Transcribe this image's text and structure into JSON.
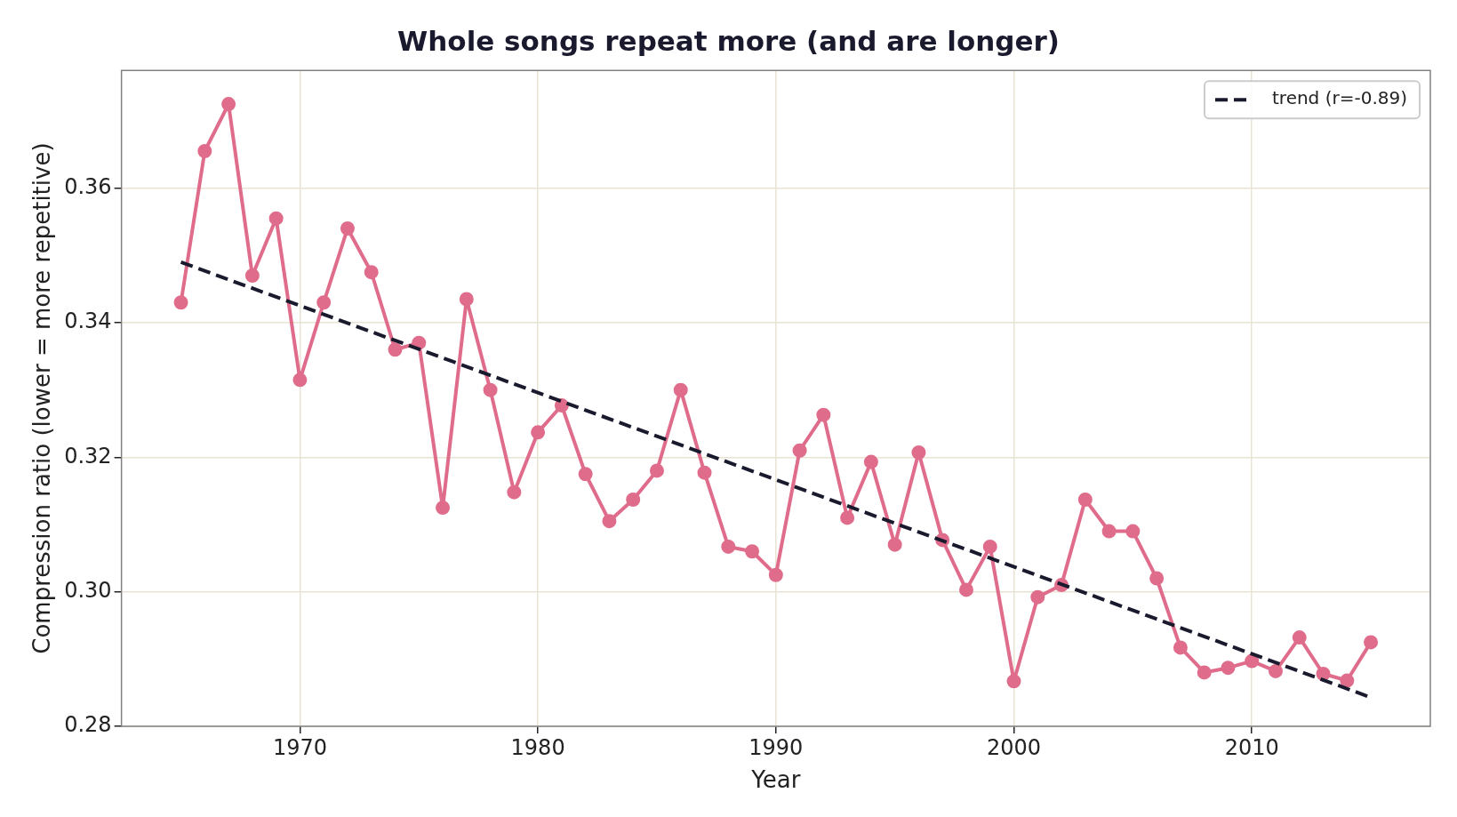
{
  "chart_data": {
    "type": "line",
    "title": "Whole songs repeat more (and are longer)",
    "xlabel": "Year",
    "ylabel": "Compression ratio (lower = more repetitive)",
    "x": [
      1965,
      1966,
      1967,
      1968,
      1969,
      1970,
      1971,
      1972,
      1973,
      1974,
      1975,
      1976,
      1977,
      1978,
      1979,
      1980,
      1981,
      1982,
      1983,
      1984,
      1985,
      1986,
      1987,
      1988,
      1989,
      1990,
      1991,
      1992,
      1993,
      1994,
      1995,
      1996,
      1997,
      1998,
      1999,
      2000,
      2001,
      2002,
      2003,
      2004,
      2005,
      2006,
      2007,
      2008,
      2009,
      2010,
      2011,
      2012,
      2013,
      2014,
      2015
    ],
    "series": [
      {
        "color": "#e06c8c",
        "marker": "circle",
        "values": [
          0.343,
          0.3655,
          0.3725,
          0.347,
          0.3555,
          0.3315,
          0.343,
          0.354,
          0.3475,
          0.336,
          0.337,
          0.3125,
          0.3435,
          0.33,
          0.3148,
          0.3237,
          0.3277,
          0.3175,
          0.3105,
          0.3137,
          0.318,
          0.33,
          0.3177,
          0.3067,
          0.306,
          0.3025,
          0.321,
          0.3263,
          0.311,
          0.3193,
          0.307,
          0.3207,
          0.3077,
          0.3003,
          0.3067,
          0.2867,
          0.2992,
          0.301,
          0.3137,
          0.309,
          0.309,
          0.302,
          0.2917,
          0.288,
          0.2887,
          0.2897,
          0.2882,
          0.2932,
          0.2878,
          0.2868,
          0.2925
        ]
      },
      {
        "name": "trend (r=-0.89)",
        "color": "#1a1a2e",
        "line_style": "dashed",
        "marker": "none",
        "x": [
          1965,
          2015
        ],
        "values": [
          0.349,
          0.2843
        ]
      }
    ],
    "xlim": [
      1962.5,
      2017.5
    ],
    "xticks": [
      1970,
      1980,
      1990,
      2000,
      2010
    ],
    "ylim": [
      0.28,
      0.3775
    ],
    "yticks": [
      0.28,
      {
        "value": 0.3,
        "label": "0.30"
      },
      0.32,
      0.34,
      0.36
    ],
    "grid": true,
    "legend": "top right"
  }
}
